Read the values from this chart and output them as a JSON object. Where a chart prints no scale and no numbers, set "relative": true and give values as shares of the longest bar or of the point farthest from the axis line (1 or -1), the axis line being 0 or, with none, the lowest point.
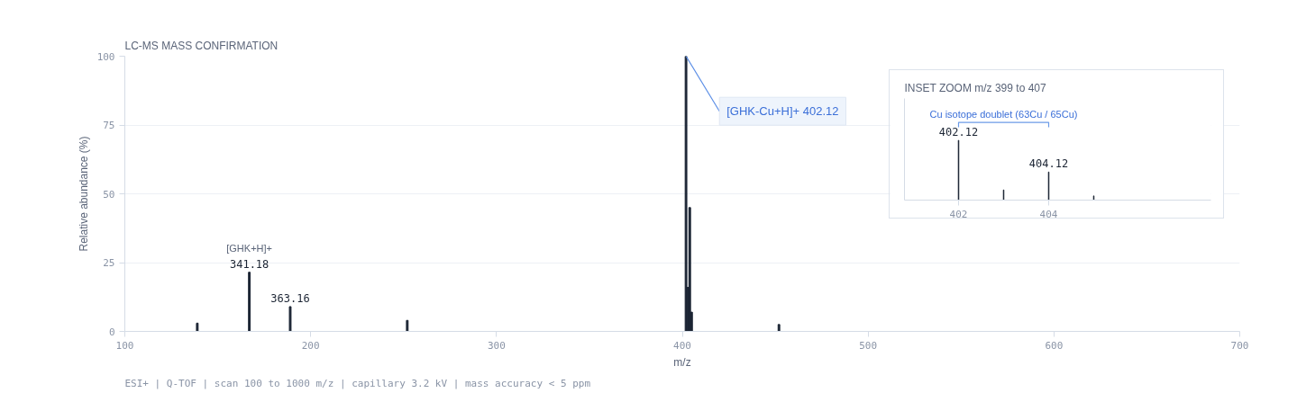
{
  "chart_data": [
    {
      "type": "bar",
      "title": "LC-MS MASS CONFIRMATION",
      "xlabel": "m/z",
      "ylabel": "Relative abundance (%)",
      "x": [
        139,
        167,
        189,
        252,
        402,
        403,
        404,
        405,
        452
      ],
      "values": [
        3,
        21.5,
        9,
        4,
        100,
        16,
        45,
        7,
        2.5
      ],
      "color": "#1b2433",
      "xlim": [
        100,
        700
      ],
      "ylim": [
        0,
        100
      ],
      "xticks": [
        100,
        200,
        300,
        400,
        500,
        600,
        700
      ],
      "yticks": [
        0,
        25,
        50,
        75,
        100
      ],
      "grid": "y",
      "annotations": [
        {
          "text": "341.18",
          "x": 167,
          "y": 21.5
        },
        {
          "text": "[GHK+H]+",
          "x": 167,
          "y": 21.5
        },
        {
          "text": "363.16",
          "x": 189,
          "y": 9
        },
        {
          "text": "[GHK-Cu+H]+ 402.12",
          "x": 402,
          "y": 100
        },
        "ESI+ | Q-TOF | scan 100 to 1000 m/z | capillary 3.2 kV | mass accuracy < 5 ppm"
      ]
    },
    {
      "type": "bar",
      "title": "INSET ZOOM m/z 399 to 407",
      "relative": true,
      "x": [
        402,
        403,
        404,
        405
      ],
      "values": [
        1,
        0.17,
        0.47,
        0.07
      ],
      "color": "#1b2433",
      "xlim": [
        400.8,
        407.6
      ],
      "xticks": [
        402,
        404
      ],
      "annotations": [
        {
          "text": "402.12",
          "x": 402,
          "y": 1
        },
        {
          "text": "404.12",
          "x": 404,
          "y": 0.47
        },
        "Cu isotope doublet (63Cu / 65Cu)"
      ]
    }
  ]
}
